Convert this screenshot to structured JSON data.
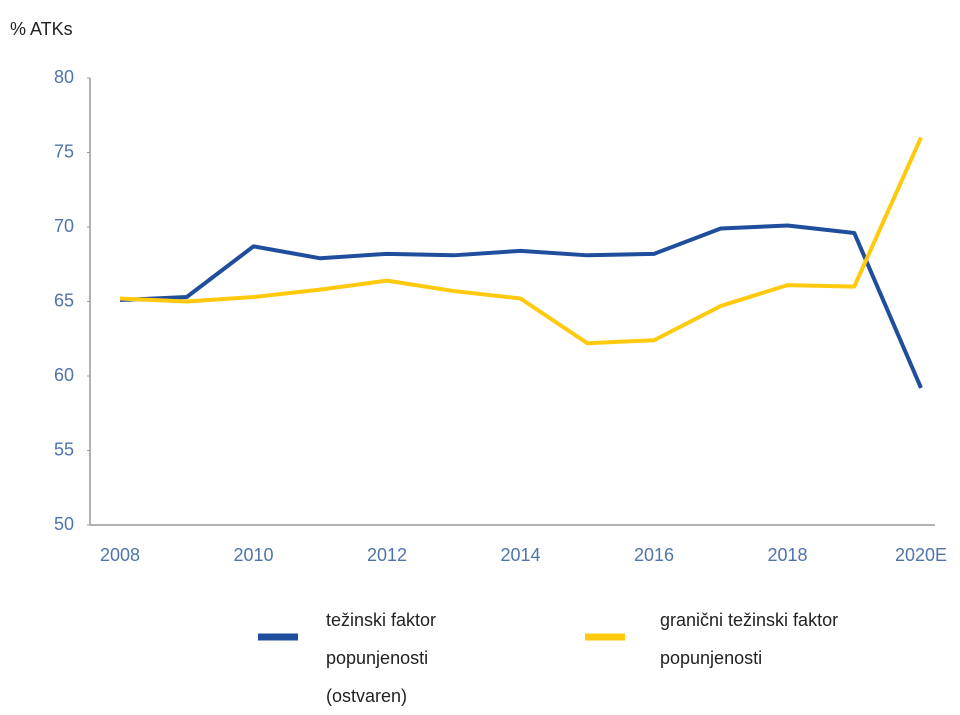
{
  "chart_data": {
    "type": "line",
    "y_label": "% ATKs",
    "categories": [
      "2008",
      null,
      "2010",
      null,
      "2012",
      null,
      "2014",
      null,
      "2016",
      null,
      "2018",
      null,
      "2020E"
    ],
    "series": [
      {
        "name": "težinski faktor popunjenosti (ostvaren)",
        "color": "#1f4e9c",
        "values": [
          65.1,
          65.3,
          68.7,
          67.9,
          68.2,
          68.1,
          68.4,
          68.1,
          68.2,
          69.9,
          70.1,
          69.6,
          59.2
        ]
      },
      {
        "name": "granični težinski faktor popunjenosti",
        "color": "#ffc90e",
        "values": [
          65.2,
          65.0,
          65.3,
          65.8,
          66.4,
          65.7,
          65.2,
          62.2,
          62.4,
          64.7,
          66.1,
          66.0,
          76.0
        ]
      }
    ],
    "ylim": [
      50,
      80
    ],
    "yticks": [
      50,
      55,
      60,
      65,
      70,
      75,
      80
    ],
    "grid": false,
    "legend": "bottom"
  }
}
